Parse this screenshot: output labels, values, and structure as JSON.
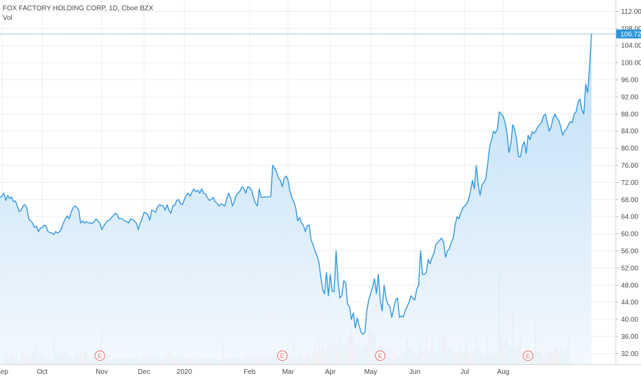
{
  "legend": {
    "title": "FOX FACTORY HOLDING CORP, 1D, Cboe BZX",
    "volume": "Vol"
  },
  "colors": {
    "line": "#2c96dc",
    "area_top": "#b9dcf5",
    "area_bottom": "#f2f8fd",
    "vol_up": "#7ccdc4",
    "vol_down": "#f4a3a0",
    "grid": "#eeeeee",
    "last_price": "#2c96dc",
    "earnings": "#e46666"
  },
  "chart_data": {
    "type": "area",
    "symbol": "FOX FACTORY HOLDING CORP",
    "interval": "1D",
    "exchange": "Cboe BZX",
    "y_ticks": [
      "112.00",
      "108.00",
      "104.00",
      "100.00",
      "96.00",
      "92.00",
      "88.00",
      "84.00",
      "80.00",
      "76.00",
      "72.00",
      "68.00",
      "64.00",
      "60.00",
      "56.00",
      "52.00",
      "48.00",
      "44.00",
      "40.00",
      "36.00",
      "32.00"
    ],
    "ylim": [
      29.5,
      114
    ],
    "x_ticks": [
      "Sep",
      "Oct",
      "Nov",
      "Dec",
      "2020",
      "Feb",
      "Mar",
      "Apr",
      "May",
      "Jun",
      "Jul",
      "Aug"
    ],
    "last_price": "106.72",
    "earnings_markers": [
      "E",
      "E",
      "E",
      "E"
    ],
    "close": [
      68.5,
      68.8,
      69.5,
      67.8,
      69,
      68.2,
      68.6,
      67.5,
      67.7,
      66.5,
      65.2,
      65.5,
      66.5,
      66.8,
      66,
      63.5,
      63,
      62.5,
      61.5,
      61.8,
      60.5,
      61.3,
      61.5,
      62,
      61.8,
      60.5,
      60.3,
      60.2,
      59.8,
      60.5,
      60.2,
      60.5,
      61.2,
      62.5,
      63.5,
      64.2,
      63.5,
      65,
      66,
      66.5,
      66.2,
      65.5,
      62.5,
      63,
      62.5,
      62.8,
      62.6,
      62.5,
      62.4,
      62.8,
      63.5,
      63,
      62.5,
      61,
      61.8,
      62.5,
      63,
      63.2,
      63.8,
      64.2,
      64.8,
      64.5,
      63.5,
      63.6,
      63.4,
      63,
      62.8,
      62.5,
      63.5,
      63.3,
      63,
      62.5,
      61,
      62.5,
      63.5,
      65,
      64.8,
      64.5,
      63.2,
      65.5,
      65.3,
      65,
      66.2,
      66.8,
      66.6,
      66.5,
      65.5,
      66.8,
      65.5,
      64.8,
      66.5,
      66.7,
      67.8,
      68,
      67,
      66.8,
      68,
      69,
      69.5,
      68.8,
      69.8,
      70.5,
      69.8,
      70.2,
      69.5,
      70.5,
      69.5,
      69.3,
      68.5,
      67.8,
      68,
      68.5,
      67.5,
      67.2,
      66.5,
      67,
      66.8,
      66.5,
      68,
      69.5,
      68.5,
      66.5,
      67.5,
      69,
      69.5,
      70,
      71,
      70.5,
      69.5,
      71,
      70.8,
      70.2,
      68.5,
      67.2,
      66.5,
      70.5,
      68.5,
      68.5,
      68.6,
      68.6,
      68.6,
      68.7,
      76,
      75.3,
      74.5,
      73,
      72.5,
      71,
      73,
      73.5,
      72.5,
      70,
      68.5,
      67.5,
      66,
      63,
      63.8,
      62.5,
      62,
      60.5,
      62,
      62,
      58.5,
      57.5,
      56,
      55,
      53.5,
      50,
      47,
      46,
      51,
      45.5,
      50.5,
      46.5,
      46.5,
      56,
      49,
      45,
      45.5,
      49,
      48.5,
      43.5,
      43,
      40,
      41.5,
      38,
      40.3,
      38.5,
      37,
      36.5,
      37,
      42,
      44.5,
      46,
      47.5,
      49.5,
      46,
      50.5,
      44.5,
      42,
      48,
      45,
      43.5,
      43,
      40.5,
      42.5,
      44.5,
      45,
      40.5,
      40.8,
      40.5,
      42,
      43,
      44,
      45.5,
      45,
      44.5,
      47,
      48,
      56,
      50.5,
      50.5,
      51,
      54,
      53,
      54.5,
      55.5,
      57.5,
      58,
      58.5,
      59,
      58,
      54.5,
      56,
      56.5,
      58,
      59,
      62,
      64,
      63.5,
      65,
      66,
      66.5,
      67,
      68,
      70,
      72.5,
      70.5,
      76,
      71.5,
      69,
      71.5,
      72,
      73,
      76.5,
      80.5,
      82,
      84,
      83.5,
      84.5,
      88.5,
      88,
      87.5,
      86,
      83.5,
      79,
      81,
      85.5,
      84.5,
      82,
      78,
      78,
      80.5,
      81.5,
      78.8,
      83,
      82,
      83.8,
      83.5,
      84,
      85,
      85.5,
      86,
      87.5,
      88,
      86,
      84,
      85,
      87,
      88,
      87,
      86.5,
      85,
      83,
      84,
      84.5,
      85.5,
      86.2,
      86,
      88,
      88.5,
      90.8,
      91.5,
      89,
      88,
      95,
      93,
      99,
      106.72
    ],
    "volume": [
      {
        "v": 28.9,
        "u": 1
      },
      {
        "v": 29.7,
        "u": 1
      },
      {
        "v": 31.0,
        "u": 1
      },
      {
        "v": 32.7,
        "u": 1
      },
      {
        "v": 31.2,
        "u": 1
      },
      {
        "v": 31.4,
        "u": 0
      },
      {
        "v": 31.5,
        "u": 1
      },
      {
        "v": 31.7,
        "u": 0
      },
      {
        "v": 30.5,
        "u": 1
      },
      {
        "v": 32.1,
        "u": 1
      },
      {
        "v": 30.3,
        "u": 1
      },
      {
        "v": 32.7,
        "u": 1
      },
      {
        "v": 32.7,
        "u": 0
      },
      {
        "v": 31.2,
        "u": 0
      },
      {
        "v": 31.4,
        "u": 0
      },
      {
        "v": 32.0,
        "u": 0
      },
      {
        "v": 31.2,
        "u": 1
      },
      {
        "v": 32.7,
        "u": 1
      },
      {
        "v": 32.5,
        "u": 0
      },
      {
        "v": 34.4,
        "u": 1
      },
      {
        "v": 30.4,
        "u": 1
      },
      {
        "v": 32.3,
        "u": 1
      },
      {
        "v": 31.4,
        "u": 0
      },
      {
        "v": 31.8,
        "u": 1
      },
      {
        "v": 30.7,
        "u": 1
      },
      {
        "v": 32.9,
        "u": 0
      },
      {
        "v": 31.4,
        "u": 1
      },
      {
        "v": 30.5,
        "u": 1
      },
      {
        "v": 35.5,
        "u": 1
      },
      {
        "v": 32.7,
        "u": 1
      },
      {
        "v": 32.1,
        "u": 1
      },
      {
        "v": 32.9,
        "u": 0
      },
      {
        "v": 32.0,
        "u": 0
      },
      {
        "v": 31.7,
        "u": 1
      },
      {
        "v": 32.9,
        "u": 1
      },
      {
        "v": 32.7,
        "u": 0
      },
      {
        "v": 31.5,
        "u": 1
      },
      {
        "v": 31.6,
        "u": 0
      },
      {
        "v": 31.0,
        "u": 0
      },
      {
        "v": 31.3,
        "u": 1
      },
      {
        "v": 32.5,
        "u": 1
      },
      {
        "v": 31.8,
        "u": 0
      },
      {
        "v": 32.1,
        "u": 0
      },
      {
        "v": 31.0,
        "u": 0
      },
      {
        "v": 32.9,
        "u": 1
      },
      {
        "v": 32.7,
        "u": 0
      },
      {
        "v": 31.5,
        "u": 0
      },
      {
        "v": 30.4,
        "u": 0
      },
      {
        "v": 32.0,
        "u": 1
      },
      {
        "v": 33.1,
        "u": 1
      },
      {
        "v": 30.6,
        "u": 0
      },
      {
        "v": 31.3,
        "u": 1
      },
      {
        "v": 31.9,
        "u": 1
      },
      {
        "v": 37.5,
        "u": 0
      },
      {
        "v": 31.0,
        "u": 1
      },
      {
        "v": 31.2,
        "u": 0
      },
      {
        "v": 31.8,
        "u": 1
      },
      {
        "v": 31.8,
        "u": 1
      },
      {
        "v": 30.3,
        "u": 1
      },
      {
        "v": 30.7,
        "u": 1
      },
      {
        "v": 30.6,
        "u": 1
      },
      {
        "v": 30.9,
        "u": 1
      },
      {
        "v": 31.1,
        "u": 1
      },
      {
        "v": 31.1,
        "u": 1
      },
      {
        "v": 30.8,
        "u": 1
      },
      {
        "v": 30.9,
        "u": 1
      },
      {
        "v": 30.2,
        "u": 1
      },
      {
        "v": 30.8,
        "u": 1
      },
      {
        "v": 30.6,
        "u": 1
      },
      {
        "v": 30.8,
        "u": 1
      },
      {
        "v": 31.2,
        "u": 1
      },
      {
        "v": 31.1,
        "u": 1
      },
      {
        "v": 30.7,
        "u": 0
      },
      {
        "v": 30.3,
        "u": 0
      },
      {
        "v": 31.3,
        "u": 1
      },
      {
        "v": 31.0,
        "u": 1
      },
      {
        "v": 31.2,
        "u": 0
      },
      {
        "v": 31.0,
        "u": 1
      },
      {
        "v": 31.6,
        "u": 0
      },
      {
        "v": 31.4,
        "u": 1
      },
      {
        "v": 31.5,
        "u": 0
      },
      {
        "v": 31.6,
        "u": 1
      },
      {
        "v": 31.1,
        "u": 0
      },
      {
        "v": 31.5,
        "u": 1
      },
      {
        "v": 30.7,
        "u": 0
      },
      {
        "v": 30.8,
        "u": 0
      },
      {
        "v": 31.4,
        "u": 1
      },
      {
        "v": 31.5,
        "u": 1
      },
      {
        "v": 32.5,
        "u": 0
      },
      {
        "v": 32.1,
        "u": 0
      },
      {
        "v": 31.2,
        "u": 0
      },
      {
        "v": 31.4,
        "u": 1
      },
      {
        "v": 31.0,
        "u": 0
      },
      {
        "v": 30.8,
        "u": 0
      },
      {
        "v": 31.7,
        "u": 1
      },
      {
        "v": 31.4,
        "u": 1
      },
      {
        "v": 30.8,
        "u": 1
      },
      {
        "v": 31.0,
        "u": 0
      },
      {
        "v": 31.0,
        "u": 0
      },
      {
        "v": 30.8,
        "u": 0
      },
      {
        "v": 31.3,
        "u": 1
      },
      {
        "v": 31.0,
        "u": 0
      },
      {
        "v": 31.4,
        "u": 1
      },
      {
        "v": 30.8,
        "u": 1
      },
      {
        "v": 31.1,
        "u": 1
      },
      {
        "v": 30.8,
        "u": 1
      },
      {
        "v": 30.6,
        "u": 1
      },
      {
        "v": 31.2,
        "u": 1
      },
      {
        "v": 31.1,
        "u": 0
      },
      {
        "v": 30.8,
        "u": 1
      },
      {
        "v": 30.9,
        "u": 1
      },
      {
        "v": 30.9,
        "u": 1
      },
      {
        "v": 30.6,
        "u": 0
      },
      {
        "v": 30.7,
        "u": 1
      },
      {
        "v": 30.1,
        "u": 1
      },
      {
        "v": 30.7,
        "u": 0
      },
      {
        "v": 34.7,
        "u": 0
      },
      {
        "v": 30.6,
        "u": 1
      },
      {
        "v": 30.9,
        "u": 0
      },
      {
        "v": 31.0,
        "u": 0
      },
      {
        "v": 31.3,
        "u": 1
      },
      {
        "v": 31.1,
        "u": 1
      },
      {
        "v": 31.0,
        "u": 0
      },
      {
        "v": 31.3,
        "u": 1
      },
      {
        "v": 31.3,
        "u": 1
      },
      {
        "v": 31.2,
        "u": 0
      },
      {
        "v": 30.6,
        "u": 1
      },
      {
        "v": 30.8,
        "u": 1
      },
      {
        "v": 31.4,
        "u": 0
      },
      {
        "v": 31.6,
        "u": 1
      },
      {
        "v": 31.2,
        "u": 0
      },
      {
        "v": 30.9,
        "u": 1
      },
      {
        "v": 31.5,
        "u": 0
      },
      {
        "v": 31.5,
        "u": 1
      },
      {
        "v": 31.3,
        "u": 0
      },
      {
        "v": 31.3,
        "u": 0
      },
      {
        "v": 31.3,
        "u": 1
      },
      {
        "v": 30.8,
        "u": 0
      },
      {
        "v": 31.6,
        "u": 0
      },
      {
        "v": 30.9,
        "u": 1
      },
      {
        "v": 31.5,
        "u": 1
      },
      {
        "v": 31.3,
        "u": 0
      },
      {
        "v": 31.4,
        "u": 1
      },
      {
        "v": 31.3,
        "u": 1
      },
      {
        "v": 31.8,
        "u": 0
      },
      {
        "v": 31.3,
        "u": 0
      },
      {
        "v": 31.3,
        "u": 1
      },
      {
        "v": 31.9,
        "u": 1
      },
      {
        "v": 32.5,
        "u": 1
      },
      {
        "v": 33.1,
        "u": 0
      },
      {
        "v": 32.3,
        "u": 1
      },
      {
        "v": 31.2,
        "u": 0
      },
      {
        "v": 31.5,
        "u": 0
      },
      {
        "v": 35.3,
        "u": 1
      },
      {
        "v": 31.4,
        "u": 0
      },
      {
        "v": 31.7,
        "u": 1
      },
      {
        "v": 32.3,
        "u": 1
      },
      {
        "v": 32.2,
        "u": 0
      },
      {
        "v": 31.0,
        "u": 0
      },
      {
        "v": 31.7,
        "u": 0
      },
      {
        "v": 32.4,
        "u": 0
      },
      {
        "v": 31.8,
        "u": 1
      },
      {
        "v": 31.6,
        "u": 1
      },
      {
        "v": 32.1,
        "u": 0
      },
      {
        "v": 34.3,
        "u": 0
      },
      {
        "v": 33.0,
        "u": 0
      },
      {
        "v": 35.3,
        "u": 0
      },
      {
        "v": 33.4,
        "u": 0
      },
      {
        "v": 35.0,
        "u": 1
      },
      {
        "v": 32.5,
        "u": 0
      },
      {
        "v": 33.5,
        "u": 0
      },
      {
        "v": 34.8,
        "u": 0
      },
      {
        "v": 33.7,
        "u": 1
      },
      {
        "v": 34.0,
        "u": 1
      },
      {
        "v": 34.6,
        "u": 0
      },
      {
        "v": 34.1,
        "u": 0
      },
      {
        "v": 34.0,
        "u": 0
      },
      {
        "v": 34.9,
        "u": 1
      },
      {
        "v": 35.1,
        "u": 0
      },
      {
        "v": 34.3,
        "u": 1
      },
      {
        "v": 33.9,
        "u": 1
      },
      {
        "v": 34.9,
        "u": 0
      },
      {
        "v": 36.6,
        "u": 0
      },
      {
        "v": 37.8,
        "u": 0
      },
      {
        "v": 36.1,
        "u": 0
      },
      {
        "v": 34.6,
        "u": 0
      },
      {
        "v": 34.4,
        "u": 1
      },
      {
        "v": 34.5,
        "u": 1
      },
      {
        "v": 32.8,
        "u": 1
      },
      {
        "v": 33.1,
        "u": 1
      },
      {
        "v": 34.0,
        "u": 1
      },
      {
        "v": 34.2,
        "u": 1
      },
      {
        "v": 37.2,
        "u": 0
      },
      {
        "v": 37.1,
        "u": 0
      },
      {
        "v": 37.1,
        "u": 1
      },
      {
        "v": 36.2,
        "u": 1
      },
      {
        "v": 33.4,
        "u": 0
      },
      {
        "v": 33.3,
        "u": 0
      },
      {
        "v": 33.4,
        "u": 1
      },
      {
        "v": 34.0,
        "u": 0
      },
      {
        "v": 33.1,
        "u": 1
      },
      {
        "v": 33.4,
        "u": 0
      },
      {
        "v": 32.8,
        "u": 1
      },
      {
        "v": 31.7,
        "u": 1
      },
      {
        "v": 33.3,
        "u": 0
      },
      {
        "v": 32.3,
        "u": 0
      },
      {
        "v": 31.1,
        "u": 1
      },
      {
        "v": 31.7,
        "u": 1
      },
      {
        "v": 31.2,
        "u": 1
      },
      {
        "v": 31.8,
        "u": 1
      },
      {
        "v": 32.5,
        "u": 0
      },
      {
        "v": 32.7,
        "u": 1
      },
      {
        "v": 35.5,
        "u": 1
      },
      {
        "v": 33.6,
        "u": 1
      },
      {
        "v": 33.1,
        "u": 0
      },
      {
        "v": 31.7,
        "u": 0
      },
      {
        "v": 32.1,
        "u": 1
      },
      {
        "v": 31.4,
        "u": 1
      },
      {
        "v": 33.1,
        "u": 0
      },
      {
        "v": 34.7,
        "u": 1
      },
      {
        "v": 32.7,
        "u": 1
      },
      {
        "v": 33.1,
        "u": 0
      },
      {
        "v": 36.5,
        "u": 0
      },
      {
        "v": 32.7,
        "u": 1
      },
      {
        "v": 33.5,
        "u": 1
      },
      {
        "v": 36.3,
        "u": 0
      },
      {
        "v": 32.0,
        "u": 1
      },
      {
        "v": 32.2,
        "u": 0
      },
      {
        "v": 33.1,
        "u": 1
      },
      {
        "v": 34.9,
        "u": 1
      },
      {
        "v": 32.8,
        "u": 1
      },
      {
        "v": 36.1,
        "u": 0
      },
      {
        "v": 37.0,
        "u": 0
      },
      {
        "v": 33.1,
        "u": 1
      },
      {
        "v": 33.8,
        "u": 1
      },
      {
        "v": 33.1,
        "u": 1
      },
      {
        "v": 31.9,
        "u": 0
      },
      {
        "v": 31.9,
        "u": 0
      },
      {
        "v": 32.4,
        "u": 0
      },
      {
        "v": 32.4,
        "u": 1
      },
      {
        "v": 33.7,
        "u": 0
      },
      {
        "v": 31.8,
        "u": 1
      },
      {
        "v": 32.3,
        "u": 0
      },
      {
        "v": 35.0,
        "u": 1
      },
      {
        "v": 31.2,
        "u": 0
      },
      {
        "v": 31.9,
        "u": 0
      },
      {
        "v": 32.5,
        "u": 0
      },
      {
        "v": 32.8,
        "u": 0
      },
      {
        "v": 35.3,
        "u": 1
      },
      {
        "v": 33.5,
        "u": 1
      },
      {
        "v": 32.3,
        "u": 1
      },
      {
        "v": 31.9,
        "u": 0
      },
      {
        "v": 31.6,
        "u": 1
      },
      {
        "v": 31.9,
        "u": 1
      },
      {
        "v": 35.7,
        "u": 0
      },
      {
        "v": 31.8,
        "u": 0
      },
      {
        "v": 32.6,
        "u": 1
      },
      {
        "v": 31.6,
        "u": 1
      },
      {
        "v": 31.6,
        "u": 0
      },
      {
        "v": 31.7,
        "u": 1
      },
      {
        "v": 50.7,
        "u": 1
      },
      {
        "v": 35.9,
        "u": 0
      },
      {
        "v": 34.3,
        "u": 0
      },
      {
        "v": 34.9,
        "u": 1
      },
      {
        "v": 35.7,
        "u": 1
      },
      {
        "v": 33.4,
        "u": 1
      },
      {
        "v": 33.8,
        "u": 1
      },
      {
        "v": 41.4,
        "u": 0
      },
      {
        "v": 33.2,
        "u": 1
      },
      {
        "v": 33.4,
        "u": 0
      },
      {
        "v": 33.6,
        "u": 1
      },
      {
        "v": 36.6,
        "u": 0
      },
      {
        "v": 32.5,
        "u": 0
      },
      {
        "v": 31.8,
        "u": 1
      },
      {
        "v": 32.7,
        "u": 1
      },
      {
        "v": 32.0,
        "u": 0
      },
      {
        "v": 31.6,
        "u": 0
      },
      {
        "v": 32.7,
        "u": 0
      },
      {
        "v": 32.3,
        "u": 1
      },
      {
        "v": 39.6,
        "u": 1
      },
      {
        "v": 32.3,
        "u": 0
      },
      {
        "v": 32.8,
        "u": 1
      },
      {
        "v": 31.8,
        "u": 1
      },
      {
        "v": 31.1,
        "u": 0
      },
      {
        "v": 31.8,
        "u": 0
      },
      {
        "v": 32.0,
        "u": 0
      },
      {
        "v": 32.4,
        "u": 1
      },
      {
        "v": 33.2,
        "u": 0
      },
      {
        "v": 32.0,
        "u": 0
      },
      {
        "v": 33.1,
        "u": 0
      },
      {
        "v": 33.3,
        "u": 0
      },
      {
        "v": 31.9,
        "u": 0
      },
      {
        "v": 33.3,
        "u": 1
      },
      {
        "v": 33.6,
        "u": 1
      },
      {
        "v": 32.3,
        "u": 1
      },
      {
        "v": 33.6,
        "u": 1
      },
      {
        "v": 36.7,
        "u": 1
      }
    ]
  }
}
